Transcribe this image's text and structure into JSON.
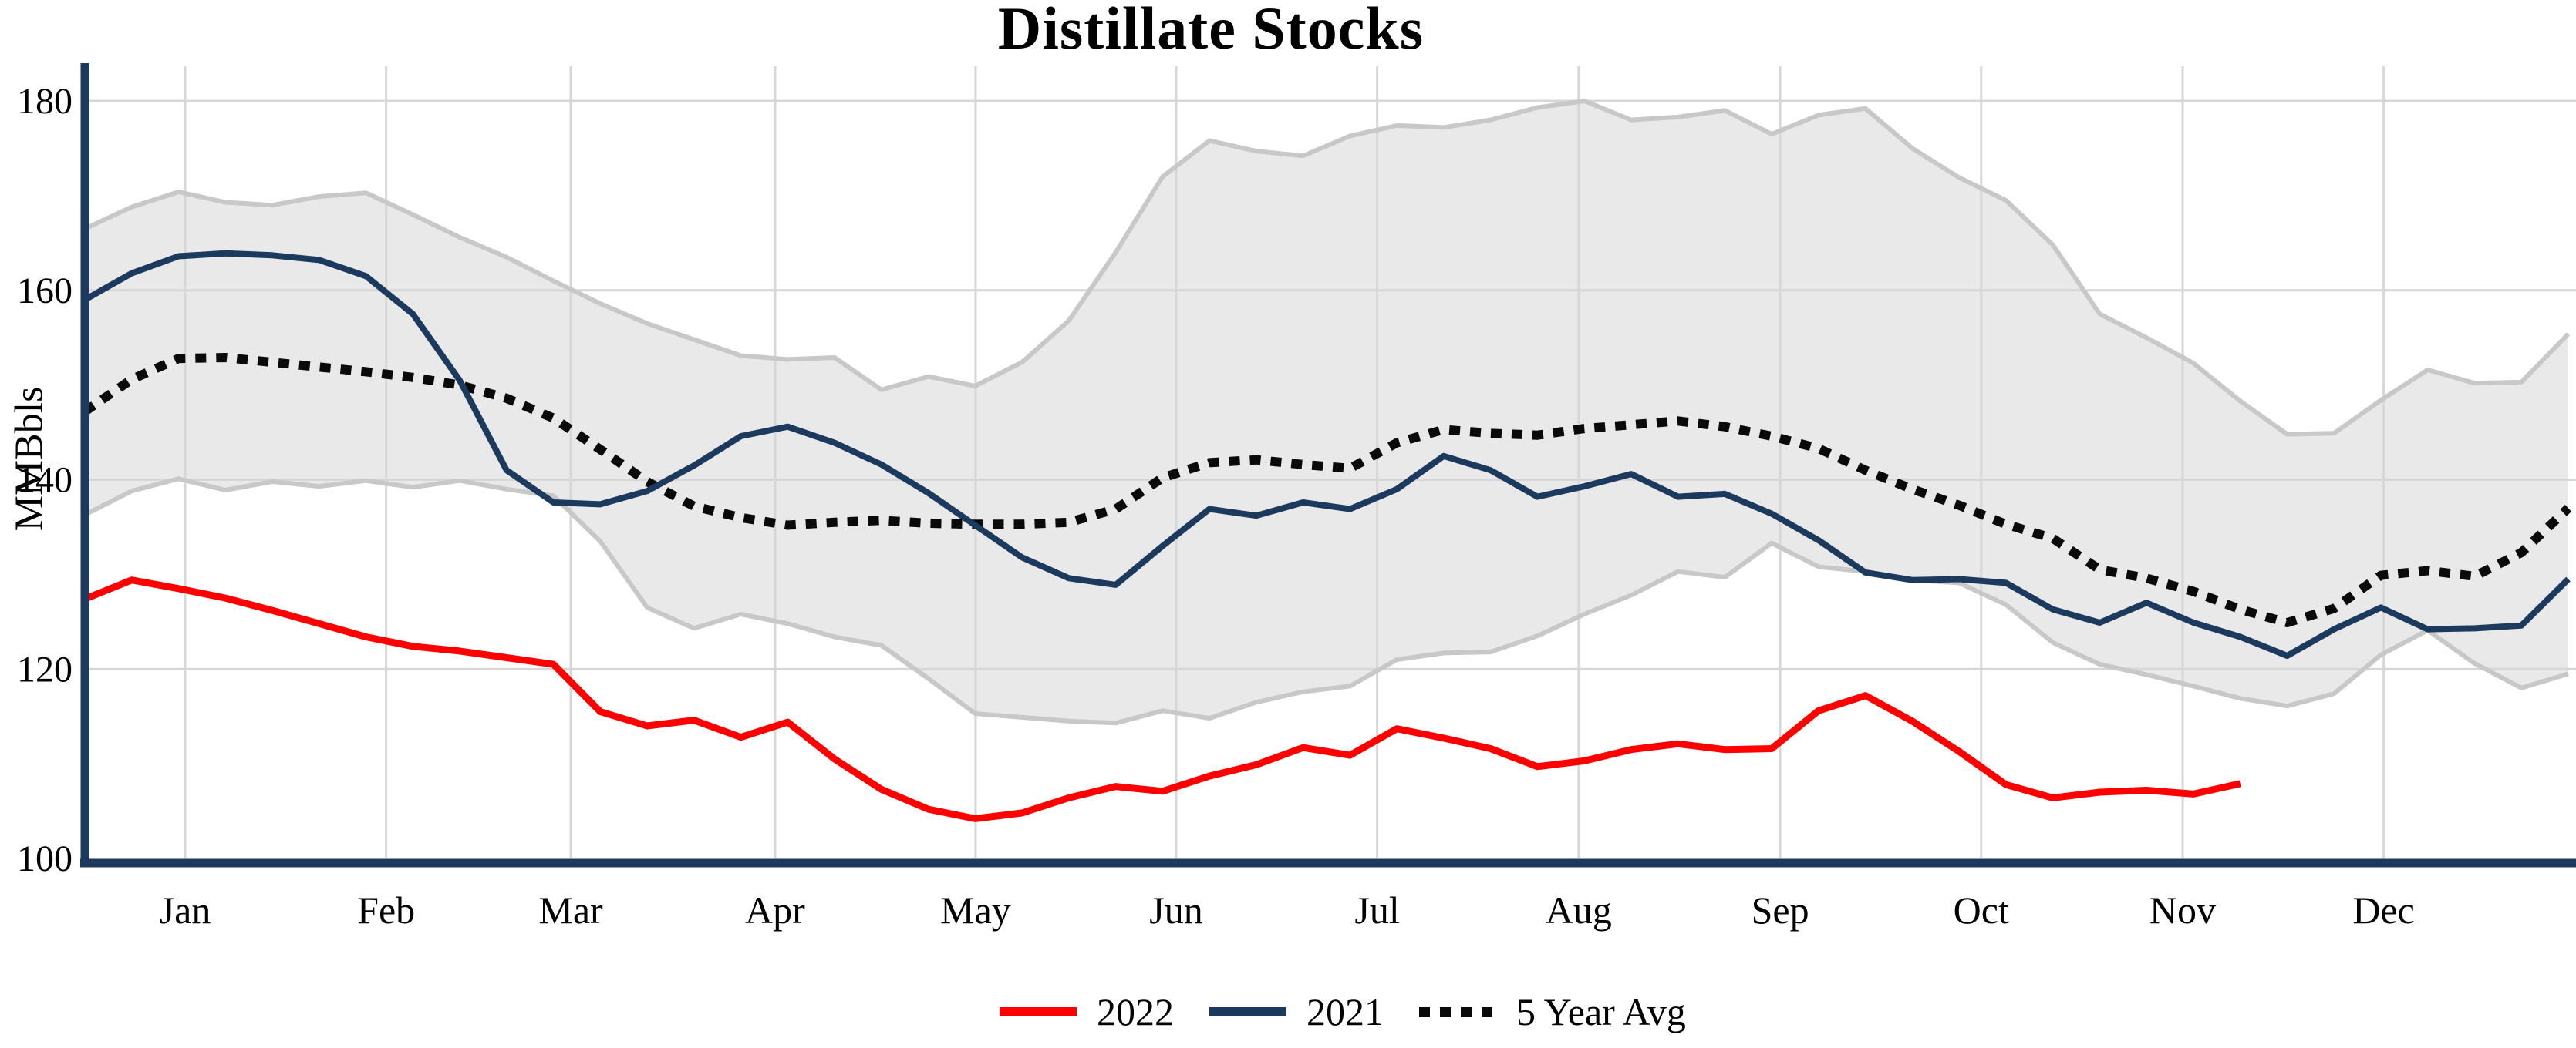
{
  "title": "Distillate Stocks",
  "y_axis": {
    "label": "MMBbls",
    "ticks": [
      100,
      120,
      140,
      160,
      180
    ],
    "min": 100,
    "max": 183.5
  },
  "x_axis": {
    "months": [
      "Jan",
      "Feb",
      "Mar",
      "Apr",
      "May",
      "Jun",
      "Jul",
      "Aug",
      "Sep",
      "Oct",
      "Nov",
      "Dec"
    ],
    "tick_weeks": [
      2.14,
      6.43,
      10.37,
      14.73,
      19.01,
      23.29,
      27.58,
      31.88,
      36.18,
      40.47,
      44.77,
      49.06
    ]
  },
  "legend": {
    "items": [
      {
        "label": "2022",
        "color": "#fe0000",
        "style": "solid"
      },
      {
        "label": "2021",
        "color": "#1c3a5e",
        "style": "solid"
      },
      {
        "label": "5 Year Avg",
        "color": "#0a0a0a",
        "style": "dotted"
      }
    ]
  },
  "colors": {
    "series_2022": "#fe0000",
    "series_2021": "#1c3a5e",
    "series_avg": "#0a0a0a",
    "band_fill": "#e9e9e9",
    "band_edge": "#c8c8c8",
    "gridline": "#d7d7d7",
    "axis": "#1c3a5e",
    "text": "#000000"
  },
  "chart_data": {
    "type": "line",
    "title": "Distillate Stocks",
    "ylabel": "MMBbls",
    "xlabel": "",
    "ylim": [
      100,
      183.5
    ],
    "x_unit": "week_index_0_to_53",
    "grid": true,
    "legend_position": "bottom-center",
    "band": {
      "name": "5 Year Range",
      "upper": [
        166.5,
        168.8,
        170.4,
        169.3,
        169.0,
        169.9,
        170.3,
        168.0,
        165.6,
        163.5,
        161.0,
        158.6,
        156.5,
        154.8,
        153.1,
        152.7,
        152.9,
        149.5,
        150.9,
        149.9,
        152.4,
        156.8,
        164.0,
        172.0,
        175.8,
        174.7,
        174.2,
        176.3,
        177.4,
        177.2,
        178.0,
        179.3,
        180.0,
        178.0,
        178.3,
        179.0,
        176.5,
        178.5,
        179.2,
        175.0,
        171.9,
        169.5,
        164.8,
        157.5,
        155.0,
        152.3,
        148.3,
        144.8,
        144.9,
        148.4,
        151.6,
        150.2,
        150.3,
        155.4
      ],
      "lower": [
        136.3,
        138.8,
        140.1,
        138.9,
        139.8,
        139.3,
        139.9,
        139.2,
        139.9,
        139.0,
        138.3,
        133.5,
        126.5,
        124.3,
        125.8,
        124.8,
        123.4,
        122.5,
        119.0,
        115.3,
        114.9,
        114.5,
        114.3,
        115.6,
        114.8,
        116.5,
        117.6,
        118.2,
        121.0,
        121.7,
        121.8,
        123.5,
        125.8,
        127.8,
        130.3,
        129.7,
        133.3,
        130.8,
        130.3,
        129.4,
        129.1,
        126.8,
        122.8,
        120.5,
        119.4,
        118.2,
        116.9,
        116.1,
        117.4,
        121.5,
        124.1,
        120.6,
        118.0,
        119.5
      ]
    },
    "series": [
      {
        "name": "2022",
        "color": "#fe0000",
        "style": "solid",
        "values": [
          127.4,
          129.4,
          128.5,
          127.5,
          126.2,
          124.8,
          123.4,
          122.4,
          121.9,
          121.2,
          120.5,
          115.5,
          114.0,
          114.6,
          112.8,
          114.4,
          110.5,
          107.3,
          105.2,
          104.2,
          104.8,
          106.4,
          107.6,
          107.1,
          108.7,
          109.9,
          111.7,
          110.9,
          113.7,
          112.7,
          111.6,
          109.7,
          110.3,
          111.5,
          112.1,
          111.5,
          111.6,
          115.6,
          117.2,
          114.5,
          111.3,
          107.8,
          106.4,
          107.0,
          107.2,
          106.8,
          107.9
        ]
      },
      {
        "name": "2021",
        "color": "#1c3a5e",
        "style": "solid",
        "values": [
          159.0,
          161.8,
          163.6,
          163.9,
          163.7,
          163.2,
          161.5,
          157.5,
          150.5,
          141.0,
          137.6,
          137.4,
          138.8,
          141.5,
          144.6,
          145.6,
          143.9,
          141.6,
          138.6,
          135.2,
          131.8,
          129.6,
          128.9,
          133.0,
          136.9,
          136.2,
          137.6,
          136.9,
          139.0,
          142.5,
          141.0,
          138.2,
          139.3,
          140.6,
          138.2,
          138.5,
          136.4,
          133.6,
          130.2,
          129.4,
          129.5,
          129.1,
          126.3,
          124.9,
          127.0,
          124.9,
          123.4,
          121.4,
          124.2,
          126.5,
          124.2,
          124.3,
          124.6,
          129.5
        ]
      },
      {
        "name": "5 Year Avg",
        "color": "#0a0a0a",
        "style": "dotted",
        "values": [
          147.2,
          150.6,
          152.8,
          152.9,
          152.4,
          151.9,
          151.4,
          150.8,
          150.0,
          148.6,
          146.5,
          143.2,
          139.8,
          137.2,
          136.0,
          135.2,
          135.5,
          135.7,
          135.4,
          135.3,
          135.3,
          135.5,
          136.9,
          140.2,
          141.8,
          142.1,
          141.6,
          141.2,
          143.9,
          145.3,
          144.9,
          144.7,
          145.4,
          145.8,
          146.2,
          145.6,
          144.6,
          143.3,
          141.0,
          139.0,
          137.3,
          135.3,
          133.8,
          130.5,
          129.6,
          128.2,
          126.3,
          124.9,
          126.4,
          129.9,
          130.4,
          129.8,
          132.3,
          137.0
        ]
      }
    ],
    "plot_geometry": {
      "left": 110,
      "right": 3330,
      "y_value_100": 1114,
      "y_value_180": 131,
      "plot_top": 86
    }
  }
}
